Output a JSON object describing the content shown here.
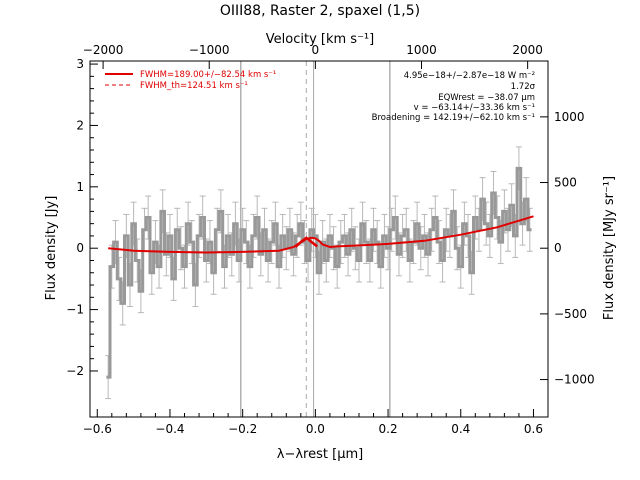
{
  "chart_data": {
    "type": "line",
    "title": "OIII88, Raster 2, spaxel (1,5)",
    "xlabel": "λ−λrest [μm]",
    "ylabel_left": "Flux density [Jy]",
    "ylabel_right": "Flux density [MJy sr⁻¹]",
    "xlabel_top": "Velocity [km s⁻¹]",
    "xlim": [
      -0.62,
      0.64
    ],
    "ylim": [
      -2.75,
      3.05
    ],
    "top_axis_ticks": [
      "−2000",
      "−1000",
      "0",
      "1000",
      "2000"
    ],
    "top_axis_tick_values": [
      -2000,
      -1000,
      0,
      1000,
      2000
    ],
    "top_axis_micron_per_kms": 0.000292,
    "right_axis_ticks": [
      "1000",
      "500",
      "0",
      "−500",
      "−1000"
    ],
    "right_axis_tick_values": [
      1000,
      500,
      0,
      -500,
      -1000
    ],
    "right_axis_jy_per_unit": 0.00214,
    "x_ticks": [
      "−0.6",
      "−0.4",
      "−0.2",
      "0.0",
      "0.2",
      "0.4",
      "0.6"
    ],
    "x_tick_values": [
      -0.6,
      -0.4,
      -0.2,
      0.0,
      0.2,
      0.4,
      0.6
    ],
    "y_ticks": [
      "3",
      "2",
      "1",
      "0",
      "−1",
      "−2"
    ],
    "y_tick_values": [
      3,
      2,
      1,
      0,
      -1,
      -2
    ],
    "vertical_lines": [
      -0.205,
      0.205
    ],
    "vertical_line_center": -0.005,
    "vertical_line_dashed": -0.025,
    "legend": {
      "fit_label": "FWHM=189.00+/−82.54 km s⁻¹",
      "theory_label": "FWHM_th=124.51 km s⁻¹",
      "placement": "top-left"
    },
    "annotations": [
      "4.95e−18+/−2.87e−18 W m⁻²",
      "1.72σ",
      "EQWrest = −38.07 μm",
      "v = −63.14+/−33.36 km s⁻¹",
      "Broadening = 142.19+/−62.10 km s⁻¹"
    ],
    "data_color": "#999999",
    "fit_color": "#e00000",
    "series": [
      {
        "kind": "spectrum",
        "x": [
          -0.57,
          -0.56,
          -0.55,
          -0.54,
          -0.53,
          -0.52,
          -0.51,
          -0.5,
          -0.49,
          -0.48,
          -0.47,
          -0.46,
          -0.45,
          -0.44,
          -0.43,
          -0.42,
          -0.41,
          -0.4,
          -0.39,
          -0.38,
          -0.37,
          -0.36,
          -0.35,
          -0.34,
          -0.33,
          -0.32,
          -0.31,
          -0.3,
          -0.29,
          -0.28,
          -0.27,
          -0.26,
          -0.25,
          -0.24,
          -0.23,
          -0.22,
          -0.21,
          -0.2,
          -0.19,
          -0.18,
          -0.17,
          -0.16,
          -0.15,
          -0.14,
          -0.13,
          -0.12,
          -0.11,
          -0.1,
          -0.09,
          -0.08,
          -0.07,
          -0.06,
          -0.05,
          -0.04,
          -0.03,
          -0.02,
          -0.01,
          0.0,
          0.01,
          0.02,
          0.03,
          0.04,
          0.05,
          0.06,
          0.07,
          0.08,
          0.09,
          0.1,
          0.11,
          0.12,
          0.13,
          0.14,
          0.15,
          0.16,
          0.17,
          0.18,
          0.19,
          0.2,
          0.21,
          0.22,
          0.23,
          0.24,
          0.25,
          0.26,
          0.27,
          0.28,
          0.29,
          0.3,
          0.31,
          0.32,
          0.33,
          0.34,
          0.35,
          0.36,
          0.37,
          0.38,
          0.39,
          0.4,
          0.41,
          0.42,
          0.43,
          0.44,
          0.45,
          0.46,
          0.47,
          0.48,
          0.49,
          0.5,
          0.51,
          0.52,
          0.53,
          0.54,
          0.55,
          0.56,
          0.57,
          0.58,
          0.59
        ],
        "y": [
          -2.1,
          -0.3,
          0.1,
          -0.5,
          -0.9,
          0.2,
          -0.6,
          0.4,
          -0.2,
          -0.7,
          0.3,
          0.5,
          -0.4,
          0.1,
          -0.3,
          0.6,
          -0.1,
          0.2,
          -0.5,
          0.3,
          0.0,
          -0.3,
          0.4,
          0.1,
          -0.6,
          0.2,
          0.5,
          -0.2,
          0.1,
          -0.4,
          0.3,
          0.6,
          -0.3,
          0.2,
          -0.1,
          0.4,
          -0.2,
          0.3,
          0.1,
          -0.3,
          0.2,
          0.5,
          -0.1,
          0.3,
          -0.2,
          0.1,
          0.4,
          -0.3,
          0.2,
          0.0,
          0.3,
          -0.1,
          0.2,
          0.4,
          0.1,
          -0.2,
          0.3,
          0.2,
          -0.4,
          0.1,
          -0.2,
          0.2,
          0.0,
          -0.3,
          0.1,
          0.2,
          -0.1,
          0.3,
          0.0,
          -0.2,
          0.4,
          0.1,
          -0.2,
          0.3,
          0.1,
          -0.3,
          0.2,
          0.0,
          0.3,
          0.5,
          -0.1,
          0.2,
          0.3,
          -0.2,
          0.1,
          0.4,
          0.0,
          0.2,
          -0.1,
          0.3,
          0.5,
          0.1,
          -0.2,
          0.3,
          0.2,
          0.6,
          0.0,
          -0.3,
          0.4,
          0.2,
          -0.4,
          0.5,
          0.3,
          0.8,
          0.4,
          0.2,
          0.9,
          0.5,
          0.1,
          0.6,
          0.3,
          0.7,
          0.2,
          1.3,
          0.4,
          0.8,
          0.3
        ],
        "yerr": 0.35
      },
      {
        "kind": "fit",
        "x": [
          -0.57,
          -0.5,
          -0.4,
          -0.3,
          -0.2,
          -0.1,
          -0.06,
          -0.04,
          -0.02,
          -0.01,
          0.0,
          0.01,
          0.02,
          0.04,
          0.06,
          0.1,
          0.2,
          0.3,
          0.4,
          0.5,
          0.6
        ],
        "y": [
          0.0,
          -0.04,
          -0.06,
          -0.07,
          -0.06,
          -0.04,
          0.02,
          0.1,
          0.16,
          0.17,
          0.16,
          0.12,
          0.06,
          0.02,
          0.03,
          0.04,
          0.07,
          0.12,
          0.22,
          0.34,
          0.52
        ]
      },
      {
        "kind": "fit_width",
        "x": [
          -0.055,
          -0.04,
          -0.025,
          -0.01,
          0.005
        ],
        "y": [
          0.02,
          0.1,
          0.17,
          0.1,
          0.03
        ]
      }
    ]
  }
}
